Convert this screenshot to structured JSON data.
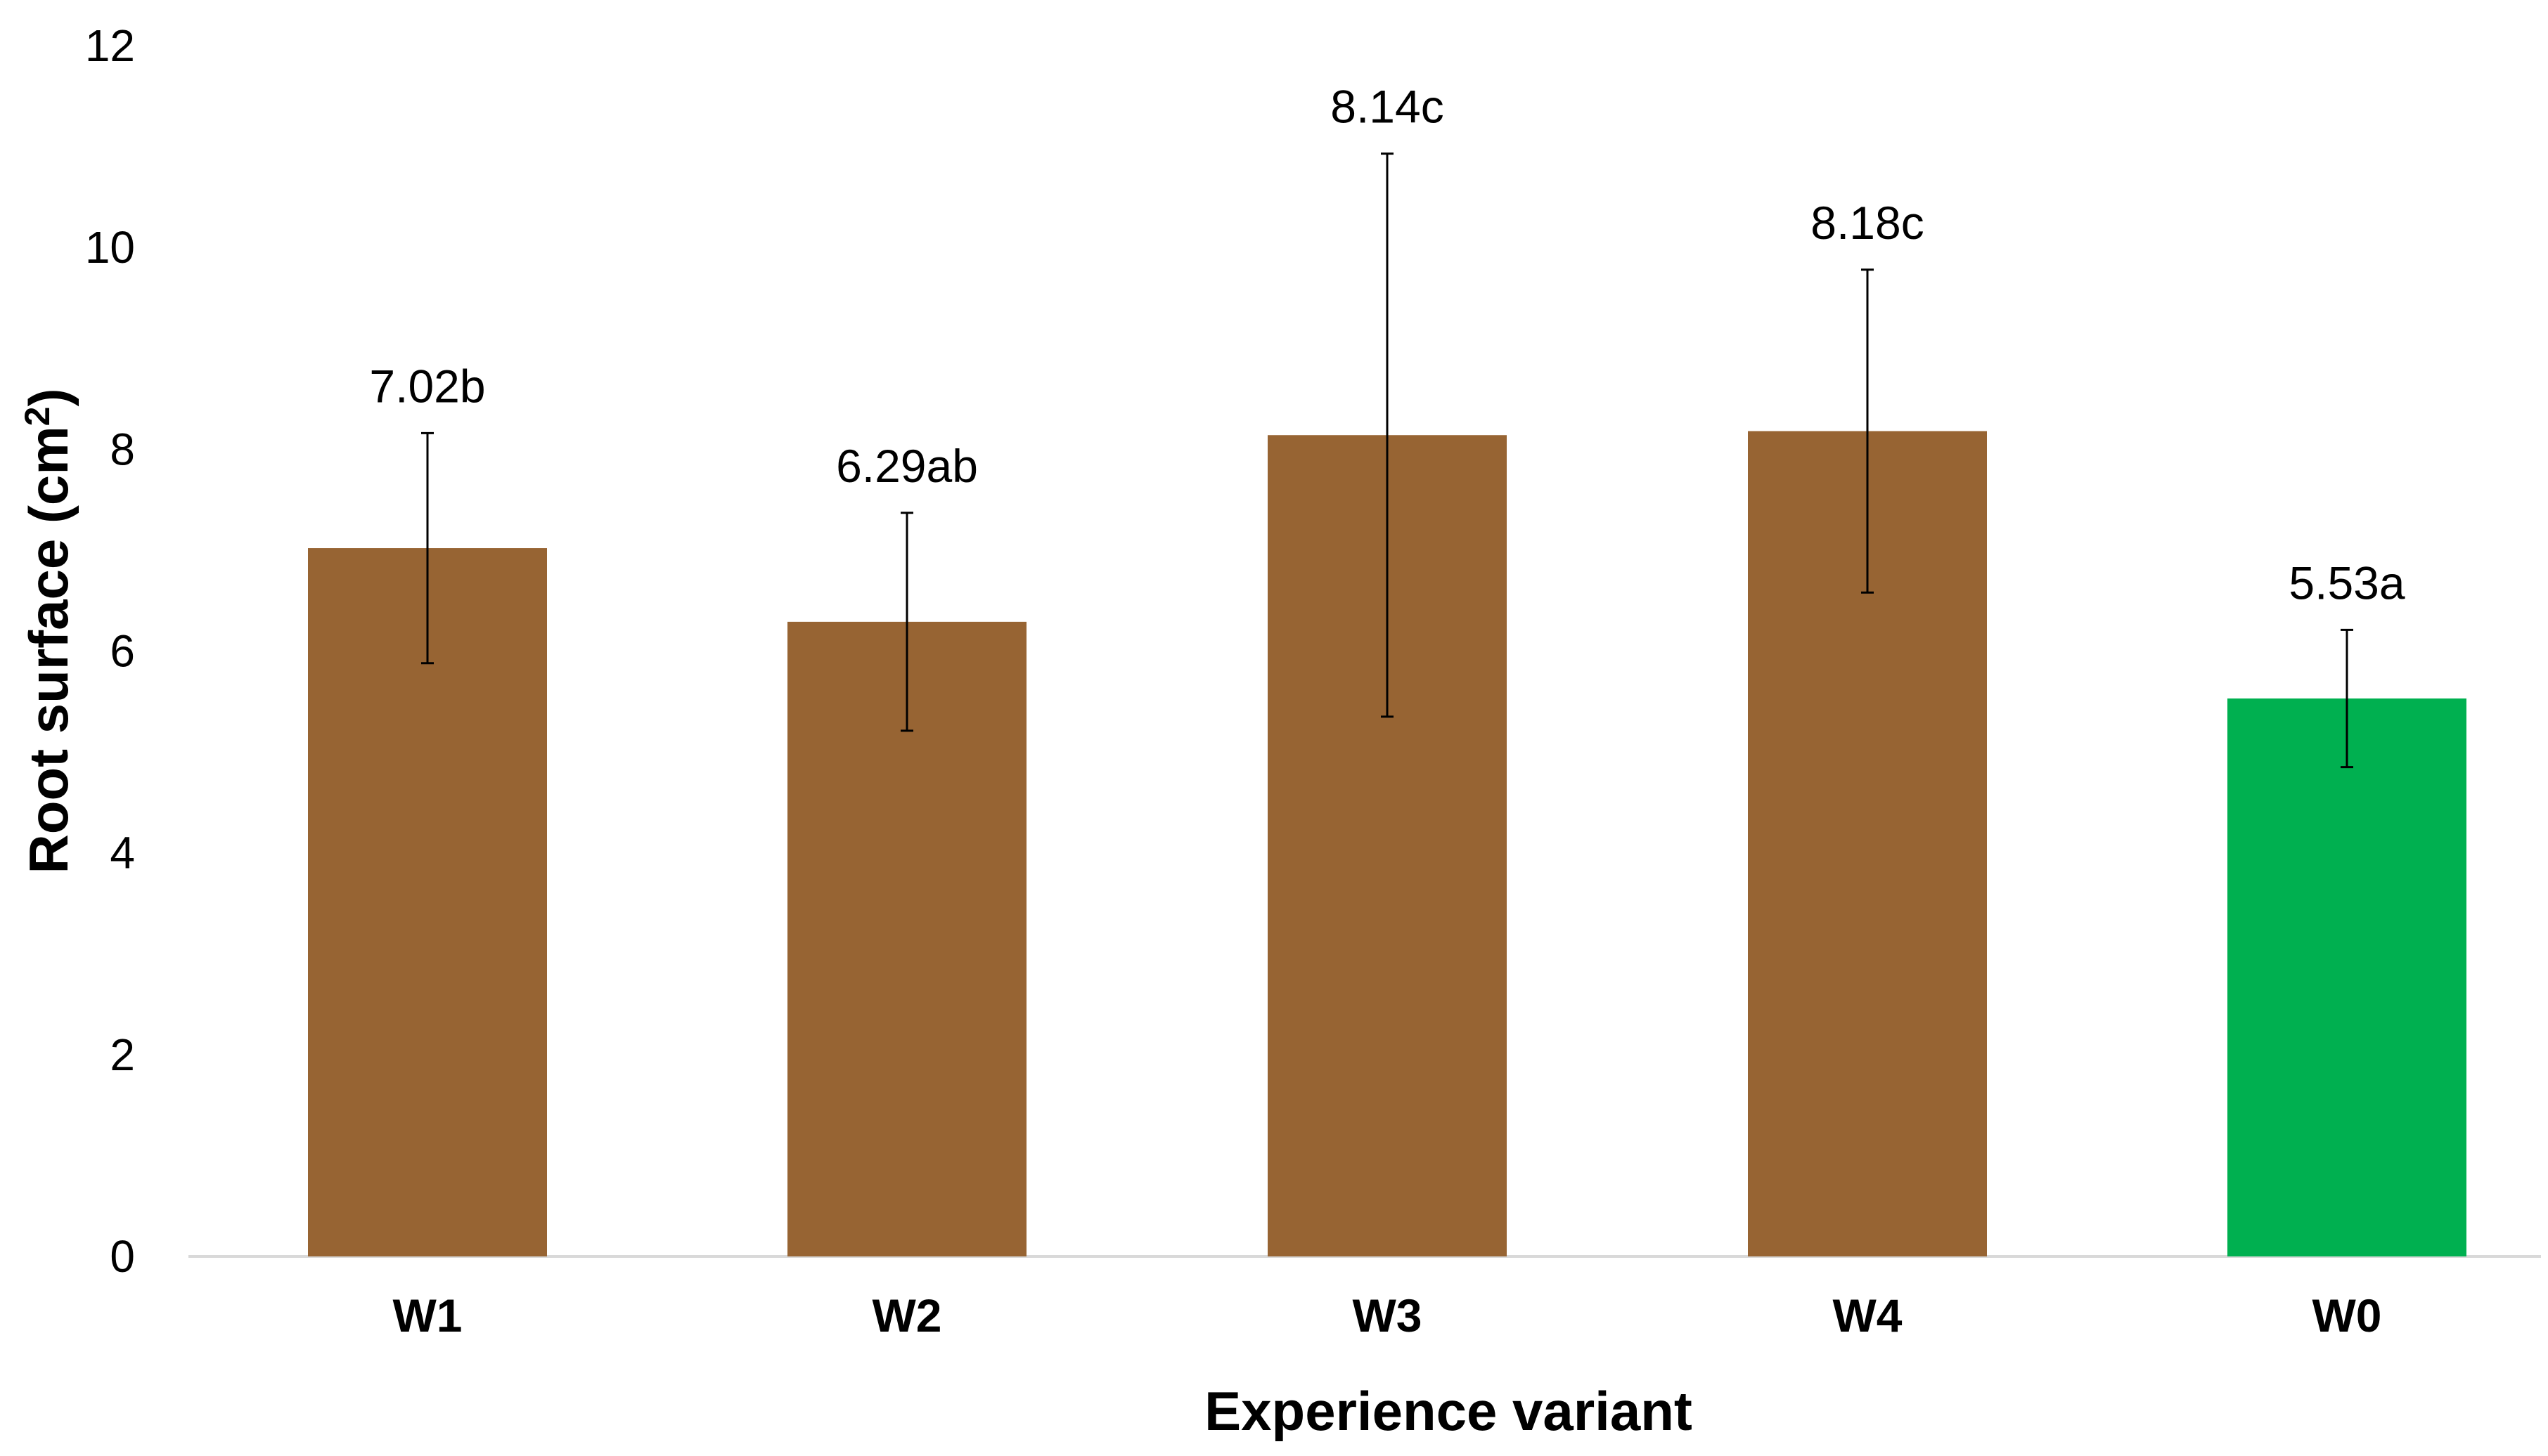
{
  "chart_data": {
    "type": "bar",
    "title": "",
    "xlabel": "Experience variant",
    "ylabel": "Root surface (cm",
    "ylabel_superscript": "2",
    "ylabel_suffix": ")",
    "categories": [
      "W1",
      "W2",
      "W3",
      "W4",
      "W0"
    ],
    "values": [
      7.02,
      6.29,
      8.14,
      8.18,
      5.53
    ],
    "error_low": [
      5.88,
      5.21,
      5.35,
      6.58,
      4.85
    ],
    "error_high": [
      8.16,
      7.37,
      10.93,
      9.78,
      6.21
    ],
    "data_labels": [
      "7.02b",
      "6.29ab",
      "8.14c",
      "8.18c",
      "5.53a"
    ],
    "bar_colors": [
      "#976433",
      "#976433",
      "#976433",
      "#976433",
      "#00B050"
    ],
    "ylim": [
      0,
      12
    ],
    "yticks": [
      0,
      2,
      4,
      6,
      8,
      10,
      12
    ],
    "grid": false,
    "legend": "none"
  }
}
